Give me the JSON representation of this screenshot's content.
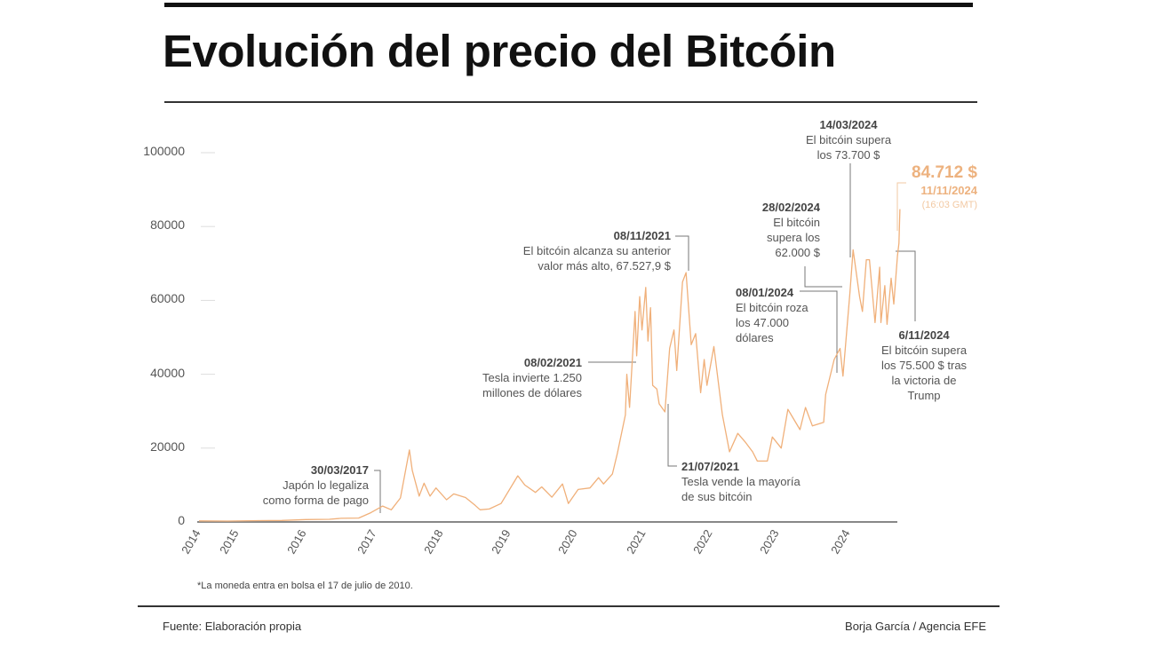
{
  "header": {
    "title": "Evolución del precio del Bitcóin"
  },
  "footer": {
    "source": "Fuente: Elaboración propia",
    "credit": "Borja García / Agencia EFE",
    "note": "*La moneda entra en bolsa el 17 de julio de 2010."
  },
  "colors": {
    "line": "#f0b07a",
    "highlight": "#edb27f",
    "axis": "#888888",
    "text": "#555555"
  },
  "annotations": [
    {
      "date": "30/03/2017",
      "text": [
        "Japón lo legaliza",
        "como forma de pago"
      ]
    },
    {
      "date": "08/02/2021",
      "text": [
        "Tesla invierte 1.250",
        "millones de dólares"
      ]
    },
    {
      "date": "08/11/2021",
      "text": [
        "El bitcóin alcanza su anterior",
        "valor más alto, 67.527,9 $"
      ]
    },
    {
      "date": "21/07/2021",
      "text": [
        "Tesla vende la mayoría",
        "de sus bitcóin"
      ]
    },
    {
      "date": "08/01/2024",
      "text": [
        "El bitcóin roza",
        "los 47.000",
        "dólares"
      ]
    },
    {
      "date": "28/02/2024",
      "text": [
        "El bitcóin",
        "supera los",
        "62.000 $"
      ]
    },
    {
      "date": "14/03/2024",
      "text": [
        "El bitcóin supera",
        "los 73.700 $"
      ]
    },
    {
      "date": "6/11/2024",
      "text": [
        "El bitcóin supera",
        "los 75.500 $ tras",
        "la victoria de",
        "Trump"
      ]
    }
  ],
  "highlight": {
    "value": "84.712 $",
    "date": "11/11/2024",
    "time": "(16:03 GMT)"
  },
  "chart_data": {
    "type": "line",
    "title": "Evolución del precio del Bitcóin",
    "xlabel": "",
    "ylabel": "",
    "ylim": [
      0,
      100000
    ],
    "yticks": [
      "0",
      "20000",
      "40000",
      "60000",
      "80000",
      "100000"
    ],
    "xticks": [
      "2014",
      "2015",
      "2016",
      "2017",
      "2018",
      "2019",
      "2020",
      "2021",
      "2022",
      "2023",
      "2024"
    ],
    "grid": false,
    "series": [
      {
        "points": [
          [
            "2015-01-01",
            300
          ],
          [
            "2015-06-01",
            230
          ],
          [
            "2015-11-01",
            350
          ],
          [
            "2016-03-01",
            420
          ],
          [
            "2016-07-01",
            650
          ],
          [
            "2016-11-01",
            730
          ],
          [
            "2017-01-01",
            980
          ],
          [
            "2017-03-30",
            1050
          ],
          [
            "2017-06-01",
            2500
          ],
          [
            "2017-08-01",
            4300
          ],
          [
            "2017-09-15",
            3300
          ],
          [
            "2017-11-01",
            6500
          ],
          [
            "2017-12-17",
            19500
          ],
          [
            "2018-01-01",
            14000
          ],
          [
            "2018-02-06",
            7000
          ],
          [
            "2018-03-01",
            10500
          ],
          [
            "2018-04-01",
            7000
          ],
          [
            "2018-05-01",
            9200
          ],
          [
            "2018-06-25",
            6000
          ],
          [
            "2018-08-01",
            7600
          ],
          [
            "2018-10-01",
            6600
          ],
          [
            "2018-11-20",
            4500
          ],
          [
            "2018-12-15",
            3300
          ],
          [
            "2019-02-01",
            3500
          ],
          [
            "2019-04-01",
            5000
          ],
          [
            "2019-06-26",
            12500
          ],
          [
            "2019-08-01",
            10000
          ],
          [
            "2019-09-25",
            8000
          ],
          [
            "2019-10-27",
            9500
          ],
          [
            "2019-12-18",
            6700
          ],
          [
            "2020-02-12",
            10300
          ],
          [
            "2020-03-12",
            5000
          ],
          [
            "2020-05-01",
            8800
          ],
          [
            "2020-07-01",
            9200
          ],
          [
            "2020-08-15",
            12000
          ],
          [
            "2020-09-10",
            10300
          ],
          [
            "2020-10-25",
            13000
          ],
          [
            "2020-11-20",
            18500
          ],
          [
            "2020-12-31",
            29000
          ],
          [
            "2021-01-08",
            40000
          ],
          [
            "2021-01-22",
            31000
          ],
          [
            "2021-02-08",
            46000
          ],
          [
            "2021-02-20",
            57000
          ],
          [
            "2021-02-28",
            45000
          ],
          [
            "2021-03-13",
            61000
          ],
          [
            "2021-03-25",
            52000
          ],
          [
            "2021-04-14",
            63500
          ],
          [
            "2021-04-25",
            49000
          ],
          [
            "2021-05-08",
            58000
          ],
          [
            "2021-05-19",
            37000
          ],
          [
            "2021-06-10",
            36000
          ],
          [
            "2021-06-22",
            32000
          ],
          [
            "2021-07-21",
            29800
          ],
          [
            "2021-08-15",
            47000
          ],
          [
            "2021-09-07",
            52000
          ],
          [
            "2021-09-21",
            41000
          ],
          [
            "2021-10-20",
            65000
          ],
          [
            "2021-11-08",
            67527.9
          ],
          [
            "2021-12-04",
            48000
          ],
          [
            "2021-12-27",
            51000
          ],
          [
            "2022-01-22",
            35000
          ],
          [
            "2022-02-10",
            44000
          ],
          [
            "2022-02-24",
            37000
          ],
          [
            "2022-03-29",
            47500
          ],
          [
            "2022-05-12",
            29000
          ],
          [
            "2022-06-18",
            19000
          ],
          [
            "2022-07-30",
            24000
          ],
          [
            "2022-09-10",
            21500
          ],
          [
            "2022-10-15",
            19000
          ],
          [
            "2022-11-09",
            16500
          ],
          [
            "2022-12-30",
            16500
          ],
          [
            "2023-01-25",
            23000
          ],
          [
            "2023-03-10",
            20000
          ],
          [
            "2023-04-14",
            30500
          ],
          [
            "2023-06-15",
            25000
          ],
          [
            "2023-07-13",
            31000
          ],
          [
            "2023-08-18",
            26000
          ],
          [
            "2023-10-15",
            27000
          ],
          [
            "2023-10-25",
            34500
          ],
          [
            "2023-12-08",
            44000
          ],
          [
            "2024-01-08",
            47000
          ],
          [
            "2024-01-23",
            39500
          ],
          [
            "2024-02-28",
            62000
          ],
          [
            "2024-03-14",
            73700
          ],
          [
            "2024-04-17",
            61000
          ],
          [
            "2024-05-01",
            57000
          ],
          [
            "2024-05-21",
            71000
          ],
          [
            "2024-06-07",
            71000
          ],
          [
            "2024-07-05",
            54000
          ],
          [
            "2024-07-29",
            69000
          ],
          [
            "2024-08-05",
            54000
          ],
          [
            "2024-08-25",
            64000
          ],
          [
            "2024-09-06",
            53500
          ],
          [
            "2024-09-27",
            66000
          ],
          [
            "2024-10-10",
            59000
          ],
          [
            "2024-10-29",
            72000
          ],
          [
            "2024-11-06",
            75500
          ],
          [
            "2024-11-11",
            84712
          ]
        ]
      }
    ]
  }
}
